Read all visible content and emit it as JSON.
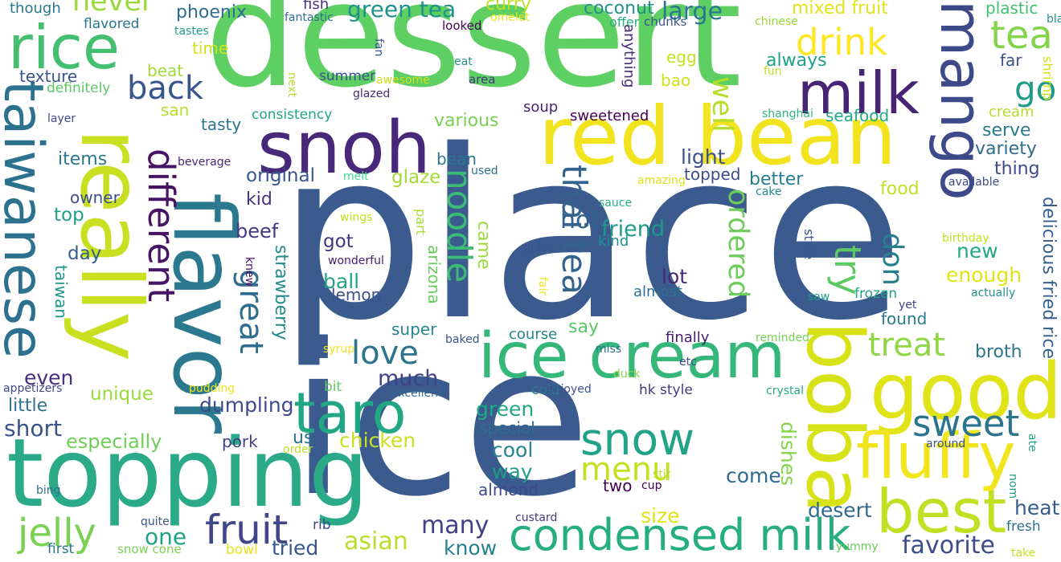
{
  "wordcloud": {
    "words": [
      {
        "text": "place",
        "color": "#3b5b8f"
      },
      {
        "text": "ice",
        "color": "#3b5b8f"
      },
      {
        "text": "dessert",
        "color": "#5ecf62"
      },
      {
        "text": "topping",
        "color": "#2aaa87"
      },
      {
        "text": "really",
        "color": "#c8e020"
      },
      {
        "text": "flavor",
        "color": "#2a798e"
      },
      {
        "text": "red bean",
        "color": "#f1e41f"
      },
      {
        "text": "snoh",
        "color": "#482878"
      },
      {
        "text": "ice cream",
        "color": "#35b779"
      },
      {
        "text": "good",
        "color": "#dfe318"
      },
      {
        "text": "boba",
        "color": "#d8e219"
      },
      {
        "text": "best",
        "color": "#c2df23"
      },
      {
        "text": "fluffy",
        "color": "#f1e51d"
      },
      {
        "text": "taiwanese",
        "color": "#2c728e"
      },
      {
        "text": "rice",
        "color": "#44bf70"
      },
      {
        "text": "mango",
        "color": "#3e4989"
      },
      {
        "text": "milk",
        "color": "#482475"
      },
      {
        "text": "taro",
        "color": "#22a785"
      },
      {
        "text": "condensed milk",
        "color": "#26ad81"
      },
      {
        "text": "snow",
        "color": "#20a386"
      },
      {
        "text": "fruit",
        "color": "#3f4788"
      },
      {
        "text": "sweet",
        "color": "#2b748e"
      },
      {
        "text": "menu",
        "color": "#c5e021"
      },
      {
        "text": "jelly",
        "color": "#7ad151"
      },
      {
        "text": "drink",
        "color": "#fde725"
      },
      {
        "text": "tea",
        "color": "#84d44b"
      },
      {
        "text": "different",
        "color": "#471365"
      },
      {
        "text": "great",
        "color": "#2e6d8e"
      },
      {
        "text": "thai tea",
        "color": "#33638d"
      },
      {
        "text": "try",
        "color": "#5ec962"
      },
      {
        "text": "love",
        "color": "#2c738e"
      },
      {
        "text": "treat",
        "color": "#8fd744"
      },
      {
        "text": "noodle",
        "color": "#3bbb75"
      },
      {
        "text": "back",
        "color": "#39568c"
      },
      {
        "text": "ordered",
        "color": "#6ccd5a"
      },
      {
        "text": "well",
        "color": "#b5de2b"
      },
      {
        "text": "don",
        "color": "#277f8e"
      },
      {
        "text": "go",
        "color": "#1f9a8a"
      },
      {
        "text": "never",
        "color": "#9bd93c"
      },
      {
        "text": "green tea",
        "color": "#20928c"
      },
      {
        "text": "large",
        "color": "#2a788e"
      },
      {
        "text": "many",
        "color": "#433e85"
      },
      {
        "text": "favorite",
        "color": "#3e4c8a"
      },
      {
        "text": "desert",
        "color": "#31688e"
      },
      {
        "text": "heat",
        "color": "#365d8d"
      },
      {
        "text": "one",
        "color": "#1fa088"
      },
      {
        "text": "asian",
        "color": "#b8de29"
      },
      {
        "text": "tried",
        "color": "#39568c"
      },
      {
        "text": "know",
        "color": "#26818e"
      },
      {
        "text": "size",
        "color": "#dde318"
      },
      {
        "text": "two",
        "color": "#440154"
      },
      {
        "text": "come",
        "color": "#2f6b8e"
      },
      {
        "text": "cool",
        "color": "#25848e"
      },
      {
        "text": "way",
        "color": "#1e9b8a"
      },
      {
        "text": "almond",
        "color": "#3e4989"
      },
      {
        "text": "dishes",
        "color": "#84d44b"
      },
      {
        "text": "chicken",
        "color": "#c8e020"
      },
      {
        "text": "especially",
        "color": "#6ece58"
      },
      {
        "text": "short",
        "color": "#3b528b"
      },
      {
        "text": "little",
        "color": "#2d718e"
      },
      {
        "text": "unique",
        "color": "#9dd93b"
      },
      {
        "text": "even",
        "color": "#472f7d"
      },
      {
        "text": "dumpling",
        "color": "#3e4a89"
      },
      {
        "text": "pork",
        "color": "#433e85"
      },
      {
        "text": "us",
        "color": "#2c728e"
      },
      {
        "text": "green",
        "color": "#22a785"
      },
      {
        "text": "special",
        "color": "#2f6c8e"
      },
      {
        "text": "much",
        "color": "#404387"
      },
      {
        "text": "hot",
        "color": "#33638d"
      },
      {
        "text": "friend",
        "color": "#1f998a"
      },
      {
        "text": "kind",
        "color": "#21918c"
      },
      {
        "text": "lot",
        "color": "#472878"
      },
      {
        "text": "almost",
        "color": "#2d708e"
      },
      {
        "text": "got",
        "color": "#453581"
      },
      {
        "text": "ball",
        "color": "#20a486"
      },
      {
        "text": "lemon",
        "color": "#3c4f8a"
      },
      {
        "text": "super",
        "color": "#24868e"
      },
      {
        "text": "course",
        "color": "#25838e"
      },
      {
        "text": "say",
        "color": "#58c765"
      },
      {
        "text": "found",
        "color": "#287c8e"
      },
      {
        "text": "finally",
        "color": "#481a6c"
      },
      {
        "text": "broth",
        "color": "#2a768e"
      },
      {
        "text": "enough",
        "color": "#e2e418"
      },
      {
        "text": "new",
        "color": "#22a884"
      },
      {
        "text": "delicious fried rice",
        "color": "#35608d"
      },
      {
        "text": "original",
        "color": "#3a548c"
      },
      {
        "text": "kid",
        "color": "#46327e"
      },
      {
        "text": "beef",
        "color": "#453882"
      },
      {
        "text": "strawberry",
        "color": "#238a8d"
      },
      {
        "text": "arizona",
        "color": "#67cc5c"
      },
      {
        "text": "came",
        "color": "#9bd93c"
      },
      {
        "text": "part",
        "color": "#a8db34"
      },
      {
        "text": "glaze",
        "color": "#a5db36"
      },
      {
        "text": "bean",
        "color": "#2b758e"
      },
      {
        "text": "light",
        "color": "#3b518b"
      },
      {
        "text": "topped",
        "color": "#3d4e8a"
      },
      {
        "text": "better",
        "color": "#277e8e"
      },
      {
        "text": "food",
        "color": "#c0df25"
      },
      {
        "text": "thing",
        "color": "#3e4989"
      },
      {
        "text": "variety",
        "color": "#2f6c8e"
      },
      {
        "text": "serve",
        "color": "#297b8e"
      },
      {
        "text": "seafood",
        "color": "#22a884"
      },
      {
        "text": "cream",
        "color": "#b2dd2d"
      },
      {
        "text": "shrimp",
        "color": "#d5e21a"
      },
      {
        "text": "far",
        "color": "#3b528b"
      },
      {
        "text": "always",
        "color": "#1fa088"
      },
      {
        "text": "mixed fruit",
        "color": "#e2e418"
      },
      {
        "text": "plastic",
        "color": "#42be71"
      },
      {
        "text": "black",
        "color": "#1f958b"
      },
      {
        "text": "chinese",
        "color": "#99d83d"
      },
      {
        "text": "fun",
        "color": "#bddf26"
      },
      {
        "text": "bao",
        "color": "#d0e11c"
      },
      {
        "text": "egg",
        "color": "#c5e021"
      },
      {
        "text": "coconut",
        "color": "#20928c"
      },
      {
        "text": "chunks",
        "color": "#3b528b"
      },
      {
        "text": "offer",
        "color": "#28ae80"
      },
      {
        "text": "anything",
        "color": "#472c7a"
      },
      {
        "text": "curry",
        "color": "#c0df25"
      },
      {
        "text": "omelet",
        "color": "#f1e51d"
      },
      {
        "text": "looked",
        "color": "#440154"
      },
      {
        "text": "eat",
        "color": "#20928c"
      },
      {
        "text": "fantastic",
        "color": "#2d708e"
      },
      {
        "text": "fish",
        "color": "#46317e"
      },
      {
        "text": "phoenix",
        "color": "#2f6b8e"
      },
      {
        "text": "time",
        "color": "#d2e21b"
      },
      {
        "text": "beat",
        "color": "#a2da37"
      },
      {
        "text": "flavored",
        "color": "#2b758e"
      },
      {
        "text": "tastes",
        "color": "#1f9e89"
      },
      {
        "text": "texture",
        "color": "#3a548c"
      },
      {
        "text": "definitely",
        "color": "#5ac864"
      },
      {
        "text": "though",
        "color": "#29798e"
      },
      {
        "text": "tasty",
        "color": "#2b758e"
      },
      {
        "text": "consistency",
        "color": "#21a685"
      },
      {
        "text": "glazed",
        "color": "#472d7b"
      },
      {
        "text": "layer",
        "color": "#3e4a89"
      },
      {
        "text": "san",
        "color": "#b5de2b"
      },
      {
        "text": "items",
        "color": "#2b758e"
      },
      {
        "text": "owner",
        "color": "#3d4d8a"
      },
      {
        "text": "top",
        "color": "#1fa187"
      },
      {
        "text": "day",
        "color": "#345f8d"
      },
      {
        "text": "taiwan",
        "color": "#1f988b"
      },
      {
        "text": "beverage",
        "color": "#472878"
      },
      {
        "text": "melt",
        "color": "#3ddc8f"
      },
      {
        "text": "used",
        "color": "#2d708e"
      },
      {
        "text": "sauce",
        "color": "#27ad81"
      },
      {
        "text": "amazing",
        "color": "#dae319"
      },
      {
        "text": "available",
        "color": "#3d4e8a"
      },
      {
        "text": "cake",
        "color": "#228d8d"
      },
      {
        "text": "wings",
        "color": "#c8e020"
      },
      {
        "text": "birthday",
        "color": "#c8e020"
      },
      {
        "text": "style",
        "color": "#365c8d"
      },
      {
        "text": "saw",
        "color": "#1f9e89"
      },
      {
        "text": "frozen",
        "color": "#20a386"
      },
      {
        "text": "yet",
        "color": "#404387"
      },
      {
        "text": "actually",
        "color": "#20928c"
      },
      {
        "text": "wonderful",
        "color": "#481b6d"
      },
      {
        "text": "grass",
        "color": "#3b528b"
      },
      {
        "text": "knew",
        "color": "#481467"
      },
      {
        "text": "fair",
        "color": "#f1e51d"
      },
      {
        "text": "fan",
        "color": "#3b528b"
      },
      {
        "text": "next",
        "color": "#b8de29"
      },
      {
        "text": "area",
        "color": "#443983"
      },
      {
        "text": "awesome",
        "color": "#c8e020"
      },
      {
        "text": "summer",
        "color": "#3a548c"
      },
      {
        "text": "soup",
        "color": "#482475"
      },
      {
        "text": "sweetened",
        "color": "#440154"
      },
      {
        "text": "various",
        "color": "#7ad151"
      },
      {
        "text": "hk style",
        "color": "#453882"
      },
      {
        "text": "etc",
        "color": "#3e4a89"
      },
      {
        "text": "miss",
        "color": "#2d708e"
      },
      {
        "text": "duck",
        "color": "#86d549"
      },
      {
        "text": "reminded",
        "color": "#75d054"
      },
      {
        "text": "crystal",
        "color": "#25ab82"
      },
      {
        "text": "baked",
        "color": "#3a548c"
      },
      {
        "text": "syrup",
        "color": "#f1e51d"
      },
      {
        "text": "cold",
        "color": "#2a788e"
      },
      {
        "text": "excellent",
        "color": "#31688e"
      },
      {
        "text": "enjoyed",
        "color": "#3b528b"
      },
      {
        "text": "pudding",
        "color": "#f1e51d"
      },
      {
        "text": "appetizers",
        "color": "#3e4a89"
      },
      {
        "text": "bit",
        "color": "#5ec962"
      },
      {
        "text": "order",
        "color": "#b8de29"
      },
      {
        "text": "stir",
        "color": "#b5de2b"
      },
      {
        "text": "cup",
        "color": "#440154"
      },
      {
        "text": "custard",
        "color": "#443983"
      },
      {
        "text": "quite",
        "color": "#3b528b"
      },
      {
        "text": "snow cone",
        "color": "#7ad151"
      },
      {
        "text": "first",
        "color": "#2a768e"
      },
      {
        "text": "bowl",
        "color": "#e5e419"
      },
      {
        "text": "rib",
        "color": "#3e4989"
      },
      {
        "text": "bing",
        "color": "#2d708e"
      },
      {
        "text": "nom",
        "color": "#1f9e89"
      },
      {
        "text": "around",
        "color": "#3b528b"
      },
      {
        "text": "ate",
        "color": "#20a386"
      },
      {
        "text": "fresh",
        "color": "#2d708e"
      },
      {
        "text": "take",
        "color": "#c8e020"
      },
      {
        "text": "yummy",
        "color": "#6ccd5a"
      },
      {
        "text": "shanghai",
        "color": "#2fb47c"
      }
    ]
  }
}
